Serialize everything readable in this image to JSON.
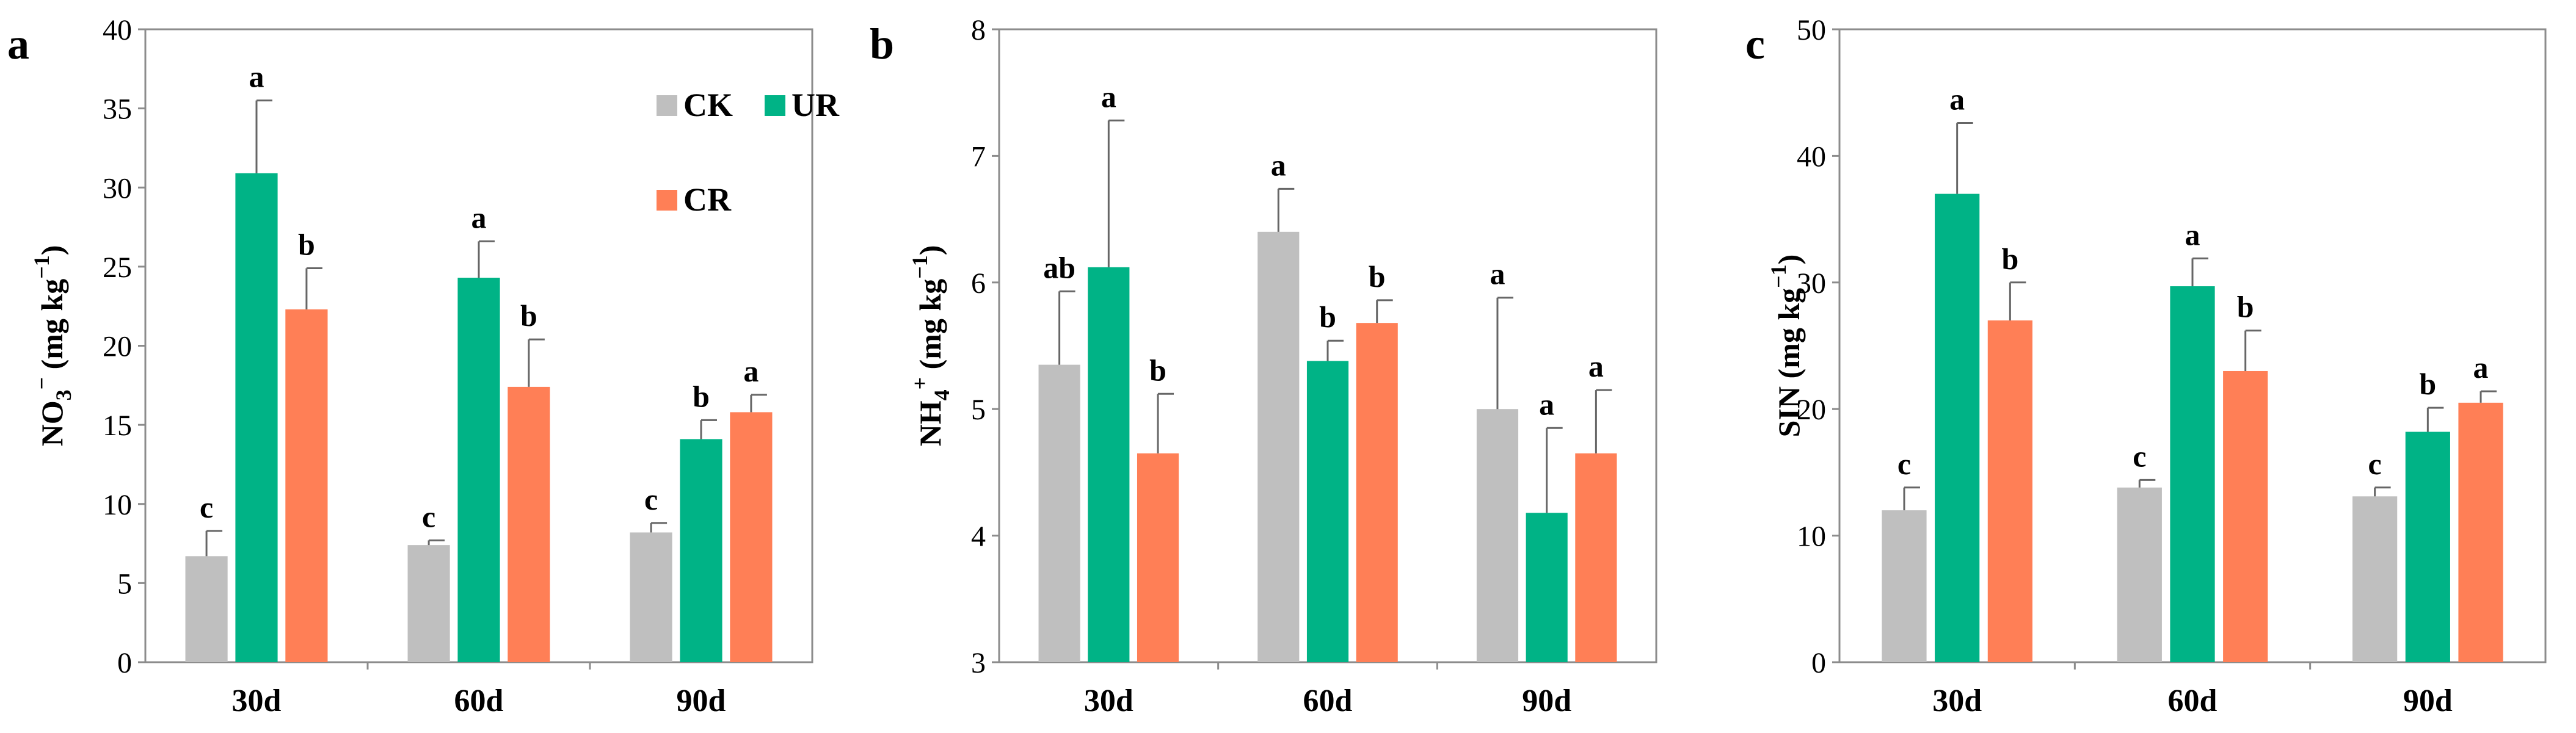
{
  "chart_data": [
    {
      "type": "bar",
      "panel_label": "a",
      "ylabel_main": "NO",
      "ylabel_sub": "3",
      "ylabel_sup": "−",
      "ylabel_units": " (mg kg",
      "ylabel_units_sup": "−1",
      "ylabel_close": ")",
      "ylim": [
        0,
        40
      ],
      "yticks": [
        0,
        5,
        10,
        15,
        20,
        25,
        30,
        35,
        40
      ],
      "categories": [
        "30d",
        "60d",
        "90d"
      ],
      "series": [
        {
          "name": "CK",
          "color": "#bfbfbf",
          "values": [
            6.7,
            7.4,
            8.2
          ],
          "errors": [
            1.6,
            0.3,
            0.6
          ],
          "letters": [
            "c",
            "c",
            "c"
          ]
        },
        {
          "name": "UR",
          "color": "#00b386",
          "values": [
            30.9,
            24.3,
            14.1
          ],
          "errors": [
            4.6,
            2.3,
            1.2
          ],
          "letters": [
            "a",
            "a",
            "b"
          ]
        },
        {
          "name": "CR",
          "color": "#ff7f56",
          "values": [
            22.3,
            17.4,
            15.8
          ],
          "errors": [
            2.6,
            3.0,
            1.1
          ],
          "letters": [
            "b",
            "b",
            "a"
          ]
        }
      ],
      "legend": [
        "CK",
        "UR",
        "CR"
      ]
    },
    {
      "type": "bar",
      "panel_label": "b",
      "ylabel_main": "NH",
      "ylabel_sub": "4",
      "ylabel_sup": "+",
      "ylabel_units": " (mg kg",
      "ylabel_units_sup": "−1",
      "ylabel_close": ")",
      "ylim": [
        3,
        8
      ],
      "yticks": [
        3,
        4,
        5,
        6,
        7,
        8
      ],
      "categories": [
        "30d",
        "60d",
        "90d"
      ],
      "series": [
        {
          "name": "CK",
          "color": "#bfbfbf",
          "values": [
            5.35,
            6.4,
            5.0
          ],
          "errors": [
            0.58,
            0.34,
            0.88
          ],
          "letters": [
            "ab",
            "a",
            "a"
          ]
        },
        {
          "name": "UR",
          "color": "#00b386",
          "values": [
            6.12,
            5.38,
            4.18
          ],
          "errors": [
            1.16,
            0.16,
            0.67
          ],
          "letters": [
            "a",
            "b",
            "a"
          ]
        },
        {
          "name": "CR",
          "color": "#ff7f56",
          "values": [
            4.65,
            5.68,
            4.65
          ],
          "errors": [
            0.47,
            0.18,
            0.5
          ],
          "letters": [
            "b",
            "b",
            "a"
          ]
        }
      ]
    },
    {
      "type": "bar",
      "panel_label": "c",
      "ylabel_main": "SIN",
      "ylabel_sub": "",
      "ylabel_sup": "",
      "ylabel_units": " (mg kg",
      "ylabel_units_sup": "−1",
      "ylabel_close": ")",
      "ylim": [
        0,
        50
      ],
      "yticks": [
        0,
        10,
        20,
        30,
        40,
        50
      ],
      "categories": [
        "30d",
        "60d",
        "90d"
      ],
      "series": [
        {
          "name": "CK",
          "color": "#bfbfbf",
          "values": [
            12.0,
            13.8,
            13.1
          ],
          "errors": [
            1.8,
            0.6,
            0.7
          ],
          "letters": [
            "c",
            "c",
            "c"
          ]
        },
        {
          "name": "UR",
          "color": "#00b386",
          "values": [
            37.0,
            29.7,
            18.2
          ],
          "errors": [
            5.6,
            2.2,
            1.9
          ],
          "letters": [
            "a",
            "a",
            "b"
          ]
        },
        {
          "name": "CR",
          "color": "#ff7f56",
          "values": [
            27.0,
            23.0,
            20.5
          ],
          "errors": [
            3.0,
            3.2,
            0.9
          ],
          "letters": [
            "b",
            "b",
            "a"
          ]
        }
      ]
    }
  ]
}
